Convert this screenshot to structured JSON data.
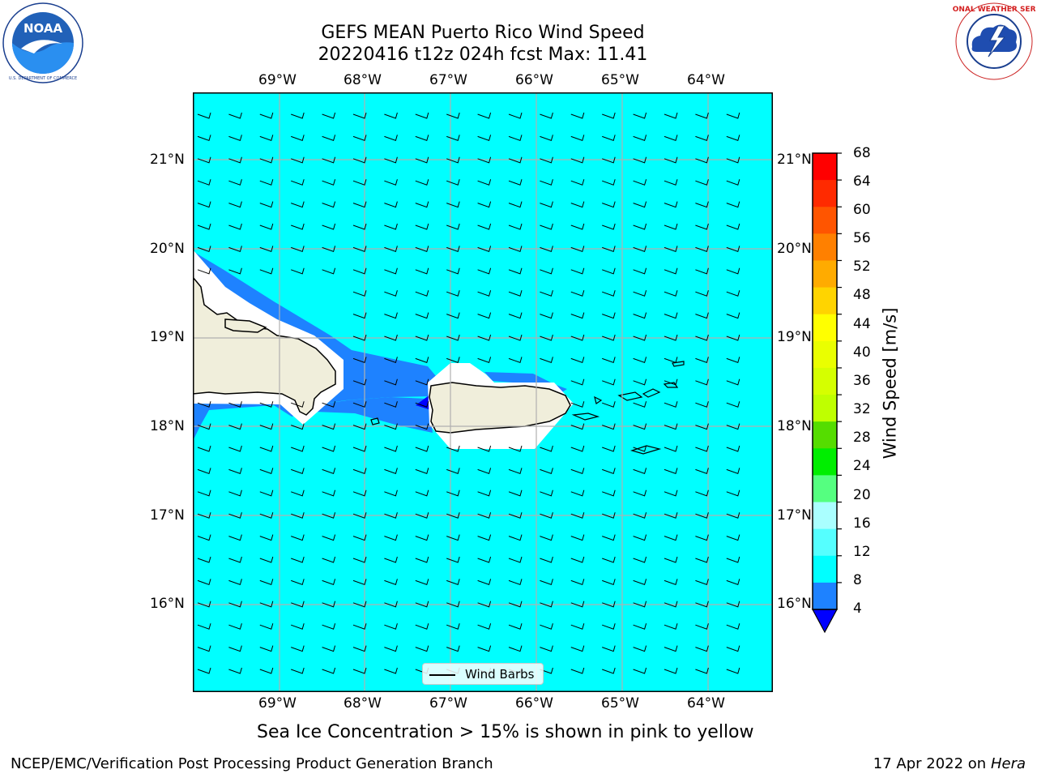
{
  "title": {
    "line1": "GEFS MEAN Puerto Rico Wind Speed",
    "line2": "20220416 t12z 024h fcst   Max: 11.41"
  },
  "map": {
    "lon_ticks": [
      "69°W",
      "68°W",
      "67°W",
      "66°W",
      "65°W",
      "64°W"
    ],
    "lat_ticks": [
      "21°N",
      "20°N",
      "19°N",
      "18°N",
      "17°N",
      "16°N"
    ],
    "ocean_color": "#00ffff",
    "land_color": "#f0eedb",
    "weak_wind_color": "#1e82ff",
    "weakest_wind_color": "#0000ff",
    "grid_color": "#b0b0b0",
    "legend_label": "Wind Barbs"
  },
  "colorbar": {
    "label": "Wind Speed [m/s]",
    "ticks": [
      "68",
      "64",
      "60",
      "56",
      "52",
      "48",
      "44",
      "40",
      "36",
      "32",
      "28",
      "24",
      "20",
      "16",
      "12",
      "8",
      "4"
    ],
    "colors_top_to_bottom": [
      "#ff0000",
      "#ff2a00",
      "#ff5500",
      "#ff8000",
      "#ffab00",
      "#ffd400",
      "#ffff00",
      "#eaff00",
      "#d5ff00",
      "#bfff00",
      "#55dd00",
      "#00ee00",
      "#55ff80",
      "#aaffff",
      "#55ffff",
      "#00ffff",
      "#1e82ff"
    ],
    "extend_color": "#0000ff"
  },
  "caption": "Sea Ice Concentration > 15% is shown in pink to yellow",
  "footer": {
    "left": "NCEP/EMC/Verification Post Processing Product Generation Branch",
    "right_prefix": "17 Apr 2022 on ",
    "right_host": "Hera"
  },
  "logos": {
    "left": "NOAA",
    "right": "NATIONAL WEATHER SERVICE"
  }
}
